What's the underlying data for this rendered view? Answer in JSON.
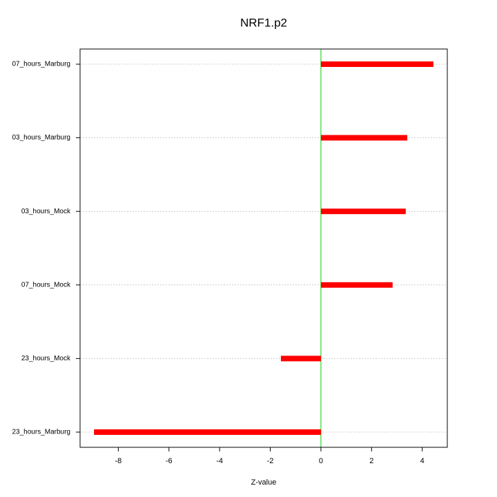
{
  "chart_data": {
    "type": "bar",
    "orientation": "horizontal",
    "title": "NRF1.p2",
    "xlabel": "Z-value",
    "categories": [
      "07_hours_Marburg",
      "03_hours_Marburg",
      "03_hours_Mock",
      "07_hours_Mock",
      "23_hours_Mock",
      "23_hours_Marburg"
    ],
    "values": [
      4.44,
      3.41,
      3.35,
      2.83,
      -1.58,
      -8.96
    ],
    "color": "#ff0000",
    "xlim": [
      -9.51,
      4.99
    ],
    "xticks": [
      -8,
      -6,
      -4,
      -2,
      0,
      2,
      4
    ],
    "grid": true,
    "reference_line": 0,
    "reference_line_color": "#00cc00"
  }
}
